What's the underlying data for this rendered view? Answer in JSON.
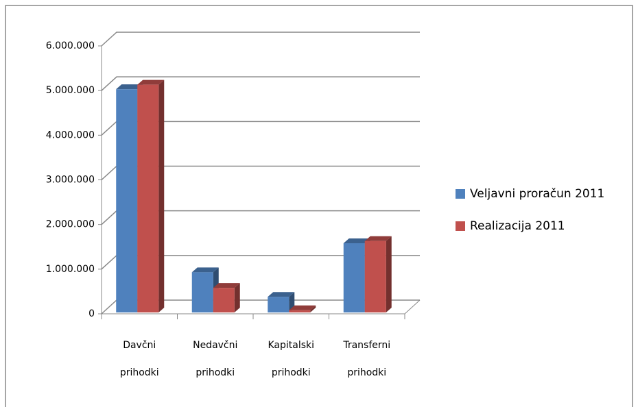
{
  "chart_data": {
    "type": "bar3d",
    "categories": [
      "Davčni prihodki",
      "Nedavčni prihodki",
      "Kapitalski prihodki",
      "Transferni prihodki"
    ],
    "series": [
      {
        "name": "Veljavni proračun 2011",
        "color": "#4f81bd",
        "values": [
          5000000,
          900000,
          350000,
          1550000
        ]
      },
      {
        "name": "Realizacija 2011",
        "color": "#c0504d",
        "values": [
          5100000,
          550000,
          50000,
          1600000
        ]
      }
    ],
    "ylim": [
      0,
      6000000
    ],
    "yticks": [
      0,
      {
        "value": 1000000,
        "label": "1.000.000"
      },
      {
        "value": 2000000,
        "label": "2.000.000"
      },
      {
        "value": 3000000,
        "label": "3.000.000"
      },
      {
        "value": 4000000,
        "label": "4.000.000"
      },
      {
        "value": 5000000,
        "label": "5.000.000"
      },
      {
        "value": 6000000,
        "label": "6.000.000"
      }
    ],
    "grid": true,
    "legend": "right"
  }
}
